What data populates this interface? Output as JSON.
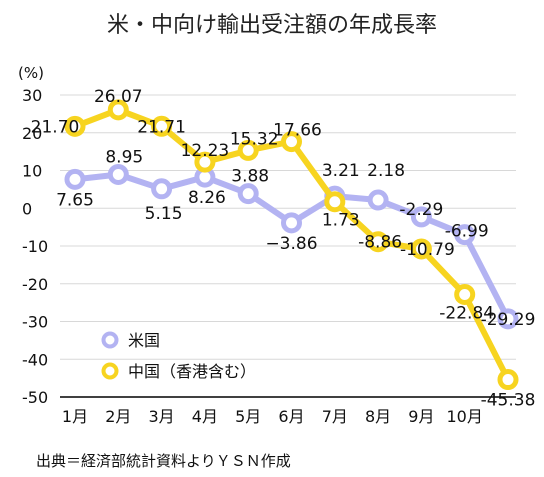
{
  "chart_data": {
    "type": "line",
    "title": "米・中向け輸出受注額の年成長率",
    "unit_label": "(%)",
    "categories": [
      "1月",
      "2月",
      "3月",
      "4月",
      "5月",
      "6月",
      "7月",
      "8月",
      "9月",
      "10月",
      "11月"
    ],
    "category_labels": [
      "1月",
      "2月",
      "3月",
      "4月",
      "5月",
      "6月",
      "7月",
      "8月",
      "9月",
      "10月",
      ""
    ],
    "yticks": [
      "30",
      "20",
      "10",
      "0",
      "-10",
      "-20",
      "-30",
      "-40",
      "-50"
    ],
    "ylim": [
      -50,
      30
    ],
    "grid": true,
    "legend_position": "lower-left",
    "series": [
      {
        "name": "米国",
        "color": "#b3b3f2",
        "values": [
          7.65,
          8.95,
          5.15,
          8.26,
          3.88,
          -3.86,
          3.21,
          2.18,
          -2.29,
          -6.99,
          -29.29
        ],
        "labels": [
          "7.65",
          "8.95",
          "5.15",
          "8.26",
          "3.88",
          "−3.86",
          "3.21",
          "2.18",
          "-2.29",
          "-6.99",
          "-29.29"
        ]
      },
      {
        "name": "中国（香港含む）",
        "color": "#f7d420",
        "values": [
          21.7,
          26.07,
          21.71,
          12.23,
          15.32,
          17.66,
          1.73,
          -8.86,
          -10.79,
          -22.84,
          -45.38
        ],
        "labels": [
          "21.70",
          "26.07",
          "21.71",
          "12.23",
          "15.32",
          "17.66",
          "1.73",
          "-8.86",
          "-10.79",
          "-22.84",
          "-45.38"
        ]
      }
    ],
    "source": "出典＝経済部統計資料よりＹＳＮ作成"
  }
}
